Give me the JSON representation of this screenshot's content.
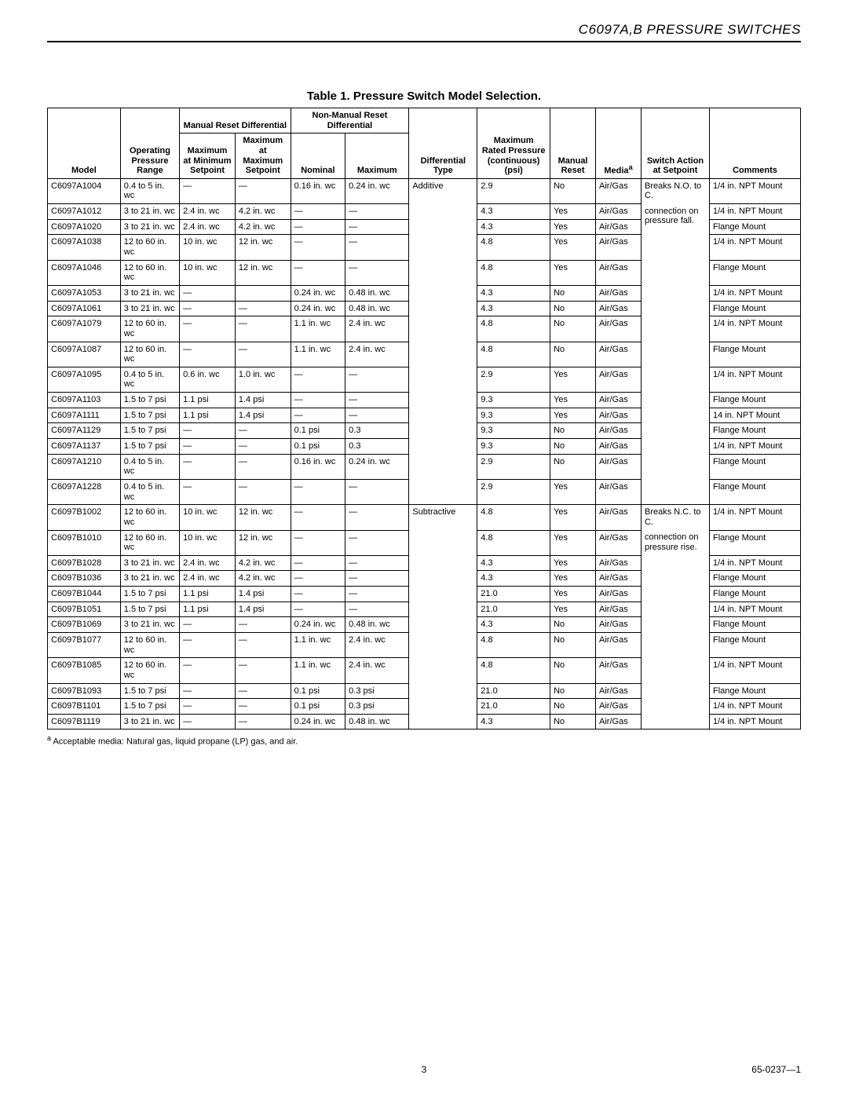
{
  "doc_header": "C6097A,B PRESSURE SWITCHES",
  "table_title": "Table 1.  Pressure Switch Model Selection.",
  "headers": {
    "model": "Model",
    "range": "Operating Pressure Range",
    "mr_group": "Manual Reset Differential",
    "mr_min": "Maximum at Minimum Setpoint",
    "mr_max": "Maximum at Maximum Setpoint",
    "nm_group": "Non-Manual Reset Differential",
    "nm_nom": "Nominal",
    "nm_max": "Maximum",
    "diff": "Differential Type",
    "psi": "Maximum Rated Pressure (continuous) (psi)",
    "mreset": "Manual Reset",
    "media": "Media",
    "media_sup": "a",
    "switch": "Switch Action at Setpoint",
    "comm": "Comments"
  },
  "diff_type_a": "Additive",
  "diff_type_b": "Subtractive",
  "switch_a1": "Breaks N.O. to C.",
  "switch_a2": "connection on pressure fall.",
  "switch_b1": "Breaks N.C. to C.",
  "switch_b2": "connection on pressure rise.",
  "rows": [
    {
      "model": "C6097A1004",
      "range": "0.4 to 5 in. wc",
      "mrmin": "—",
      "mrmax": "—",
      "nnom": "0.16 in. wc",
      "nmax": "0.24 in. wc",
      "psi": "2.9",
      "mreset": "No",
      "media": "Air/Gas",
      "comm": "1/4 in. NPT Mount"
    },
    {
      "model": "C6097A1012",
      "range": "3 to 21 in. wc",
      "mrmin": "2.4 in. wc",
      "mrmax": "4.2 in. wc",
      "nnom": "—",
      "nmax": "—",
      "psi": "4.3",
      "mreset": "Yes",
      "media": "Air/Gas",
      "comm": "1/4 in. NPT Mount"
    },
    {
      "model": "C6097A1020",
      "range": "3 to 21 in. wc",
      "mrmin": "2.4 in. wc",
      "mrmax": "4.2 in. wc",
      "nnom": "—",
      "nmax": "—",
      "psi": "4.3",
      "mreset": "Yes",
      "media": "Air/Gas",
      "comm": "Flange Mount"
    },
    {
      "model": "C6097A1038",
      "range": "12 to 60 in. wc",
      "mrmin": "10 in. wc",
      "mrmax": "12 in. wc",
      "nnom": "—",
      "nmax": "—",
      "psi": "4.8",
      "mreset": "Yes",
      "media": "Air/Gas",
      "comm": "1/4 in. NPT Mount"
    },
    {
      "model": "C6097A1046",
      "range": "12 to 60 in. wc",
      "mrmin": "10 in. wc",
      "mrmax": "12 in. wc",
      "nnom": "—",
      "nmax": "—",
      "psi": "4.8",
      "mreset": "Yes",
      "media": "Air/Gas",
      "comm": "Flange Mount"
    },
    {
      "model": "C6097A1053",
      "range": "3 to 21 in. wc",
      "mrmin": "—",
      "mrmax": "",
      "nnom": "0.24 in. wc",
      "nmax": "0.48 in. wc",
      "psi": "4.3",
      "mreset": "No",
      "media": "Air/Gas",
      "comm": "1/4 in. NPT Mount"
    },
    {
      "model": "C6097A1061",
      "range": "3 to 21 in. wc",
      "mrmin": "—",
      "mrmax": "—",
      "nnom": "0.24 in. wc",
      "nmax": "0.48 in. wc",
      "psi": "4.3",
      "mreset": "No",
      "media": "Air/Gas",
      "comm": "Flange Mount"
    },
    {
      "model": "C6097A1079",
      "range": "12 to 60 in. wc",
      "mrmin": "—",
      "mrmax": "—",
      "nnom": "1.1 in. wc",
      "nmax": "2.4 in. wc",
      "psi": "4.8",
      "mreset": "No",
      "media": "Air/Gas",
      "comm": "1/4 in. NPT Mount"
    },
    {
      "model": "C6097A1087",
      "range": "12 to 60 in. wc",
      "mrmin": "—",
      "mrmax": "—",
      "nnom": "1.1 in. wc",
      "nmax": "2.4 in. wc",
      "psi": "4.8",
      "mreset": "No",
      "media": "Air/Gas",
      "comm": "Flange Mount"
    },
    {
      "model": "C6097A1095",
      "range": "0.4 to 5 in. wc",
      "mrmin": "0.6 in. wc",
      "mrmax": "1.0 in. wc",
      "nnom": "—",
      "nmax": "—",
      "psi": "2.9",
      "mreset": "Yes",
      "media": "Air/Gas",
      "comm": "1/4 in. NPT Mount"
    },
    {
      "model": "C6097A1103",
      "range": "1.5 to 7 psi",
      "mrmin": "1.1 psi",
      "mrmax": "1.4 psi",
      "nnom": "—",
      "nmax": "—",
      "psi": "9.3",
      "mreset": "Yes",
      "media": "Air/Gas",
      "comm": "Flange Mount"
    },
    {
      "model": "C6097A1111",
      "range": "1.5 to 7 psi",
      "mrmin": "1.1 psi",
      "mrmax": "1.4 psi",
      "nnom": "—",
      "nmax": "—",
      "psi": "9.3",
      "mreset": "Yes",
      "media": "Air/Gas",
      "comm": "14 in. NPT Mount"
    },
    {
      "model": "C6097A1129",
      "range": "1.5 to 7 psi",
      "mrmin": "—",
      "mrmax": "—",
      "nnom": "0.1 psi",
      "nmax": "0.3",
      "psi": "9.3",
      "mreset": "No",
      "media": "Air/Gas",
      "comm": "Flange Mount"
    },
    {
      "model": "C6097A1137",
      "range": "1.5 to 7 psi",
      "mrmin": "—",
      "mrmax": "—",
      "nnom": "0.1 psi",
      "nmax": "0.3",
      "psi": "9.3",
      "mreset": "No",
      "media": "Air/Gas",
      "comm": "1/4 in. NPT Mount"
    },
    {
      "model": "C6097A1210",
      "range": "0.4 to 5 in. wc",
      "mrmin": "—",
      "mrmax": "—",
      "nnom": "0.16 in. wc",
      "nmax": "0.24 in. wc",
      "psi": "2.9",
      "mreset": "No",
      "media": "Air/Gas",
      "comm": "Flange Mount"
    },
    {
      "model": "C6097A1228",
      "range": "0.4 to 5 in. wc",
      "mrmin": "—",
      "mrmax": "—",
      "nnom": "—",
      "nmax": "—",
      "psi": "2.9",
      "mreset": "Yes",
      "media": "Air/Gas",
      "comm": "Flange Mount"
    },
    {
      "model": "C6097B1002",
      "range": "12 to 60 in. wc",
      "mrmin": "10 in. wc",
      "mrmax": "12 in. wc",
      "nnom": "—",
      "nmax": "—",
      "psi": "4.8",
      "mreset": "Yes",
      "media": "Air/Gas",
      "comm": "1/4 in. NPT Mount"
    },
    {
      "model": "C6097B1010",
      "range": "12 to 60 in. wc",
      "mrmin": "10 in. wc",
      "mrmax": "12 in. wc",
      "nnom": "—",
      "nmax": "—",
      "psi": "4.8",
      "mreset": "Yes",
      "media": "Air/Gas",
      "comm": "Flange Mount"
    },
    {
      "model": "C6097B1028",
      "range": "3 to 21 in. wc",
      "mrmin": "2.4 in. wc",
      "mrmax": "4.2 in. wc",
      "nnom": "—",
      "nmax": "—",
      "psi": "4.3",
      "mreset": "Yes",
      "media": "Air/Gas",
      "comm": "1/4 in. NPT Mount"
    },
    {
      "model": "C6097B1036",
      "range": "3 to 21 in. wc",
      "mrmin": "2.4 in. wc",
      "mrmax": "4.2 in. wc",
      "nnom": "—",
      "nmax": "—",
      "psi": "4.3",
      "mreset": "Yes",
      "media": "Air/Gas",
      "comm": "Flange Mount"
    },
    {
      "model": "C6097B1044",
      "range": "1.5 to 7 psi",
      "mrmin": "1.1 psi",
      "mrmax": "1.4 psi",
      "nnom": "—",
      "nmax": "—",
      "psi": "21.0",
      "mreset": "Yes",
      "media": "Air/Gas",
      "comm": "Flange Mount"
    },
    {
      "model": "C6097B1051",
      "range": "1.5 to 7 psi",
      "mrmin": "1.1 psi",
      "mrmax": "1.4 psi",
      "nnom": "—",
      "nmax": "—",
      "psi": "21.0",
      "mreset": "Yes",
      "media": "Air/Gas",
      "comm": "1/4 in. NPT Mount"
    },
    {
      "model": "C6097B1069",
      "range": "3 to 21 in. wc",
      "mrmin": "—",
      "mrmax": "—",
      "nnom": "0.24 in. wc",
      "nmax": "0.48 in. wc",
      "psi": "4.3",
      "mreset": "No",
      "media": "Air/Gas",
      "comm": "Flange Mount"
    },
    {
      "model": "C6097B1077",
      "range": "12 to 60 in. wc",
      "mrmin": "—",
      "mrmax": "—",
      "nnom": "1.1 in. wc",
      "nmax": "2.4 in. wc",
      "psi": "4.8",
      "mreset": "No",
      "media": "Air/Gas",
      "comm": "Flange Mount"
    },
    {
      "model": "C6097B1085",
      "range": "12 to 60 in. wc",
      "mrmin": "—",
      "mrmax": "—",
      "nnom": "1.1 in. wc",
      "nmax": "2.4 in. wc",
      "psi": "4.8",
      "mreset": "No",
      "media": "Air/Gas",
      "comm": "1/4 in. NPT Mount"
    },
    {
      "model": "C6097B1093",
      "range": "1.5 to 7 psi",
      "mrmin": "—",
      "mrmax": "—",
      "nnom": "0.1 psi",
      "nmax": "0.3 psi",
      "psi": "21.0",
      "mreset": "No",
      "media": "Air/Gas",
      "comm": "Flange Mount"
    },
    {
      "model": "C6097B1101",
      "range": "1.5 to 7 psi",
      "mrmin": "—",
      "mrmax": "—",
      "nnom": "0.1 psi",
      "nmax": "0.3 psi",
      "psi": "21.0",
      "mreset": "No",
      "media": "Air/Gas",
      "comm": "1/4 in. NPT Mount"
    },
    {
      "model": "C6097B1119",
      "range": "3 to 21 in. wc",
      "mrmin": "—",
      "mrmax": "—",
      "nnom": "0.24 in. wc",
      "nmax": "0.48 in. wc",
      "psi": "4.3",
      "mreset": "No",
      "media": "Air/Gas",
      "comm": "1/4 in. NPT Mount"
    }
  ],
  "footnote_sup": "a",
  "footnote_text": " Acceptable media: Natural gas, liquid propane (LP) gas, and air.",
  "page_number": "3",
  "doc_number": "65-0237—1"
}
